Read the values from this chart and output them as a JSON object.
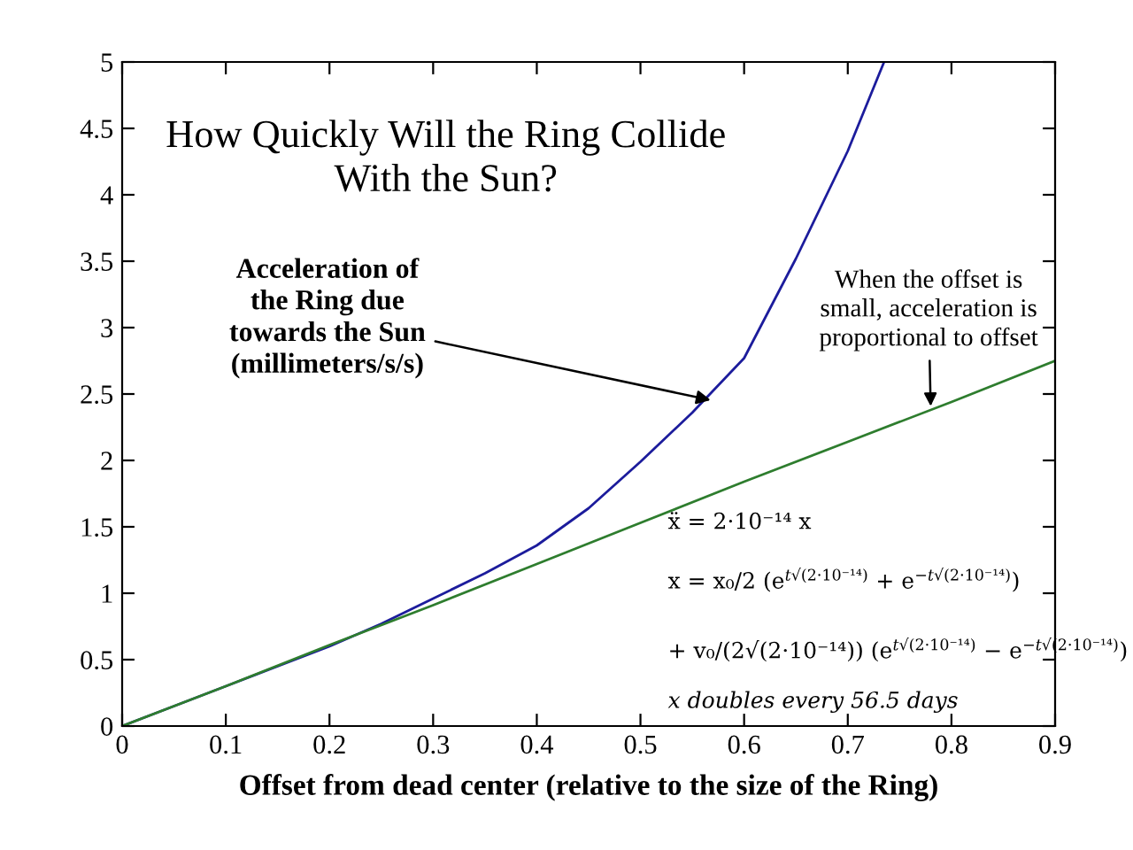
{
  "chart_data": {
    "type": "line",
    "title": "How Quickly Will the Ring Collide\nWith the Sun?",
    "xlabel": "Offset from dead center (relative to the size of the Ring)",
    "series": [
      {
        "color": "#1c1c9c",
        "x": [
          0,
          0.05,
          0.1,
          0.15,
          0.2,
          0.25,
          0.3,
          0.35,
          0.4,
          0.45,
          0.5,
          0.55,
          0.6,
          0.65,
          0.7,
          0.735
        ],
        "values": [
          0,
          0.15,
          0.3,
          0.45,
          0.6,
          0.77,
          0.96,
          1.15,
          1.36,
          1.64,
          1.99,
          2.36,
          2.77,
          3.52,
          4.33,
          5
        ]
      },
      {
        "color": "#2e7d2e",
        "x": [
          0,
          0.1,
          0.2,
          0.3,
          0.4,
          0.5,
          0.6,
          0.7,
          0.8,
          0.9
        ],
        "values": [
          0,
          0.3,
          0.61,
          0.91,
          1.22,
          1.53,
          1.84,
          2.14,
          2.44,
          2.75
        ]
      }
    ],
    "annotations": [
      {
        "text": "Acceleration of\nthe Ring due\ntowards the Sun\n(millimeters/s/s)",
        "x": 0.57,
        "y": 2.45
      },
      {
        "text": "When the offset is\nsmall, acceleration is\nproportional to offset",
        "x": 0.78,
        "y": 2.39
      },
      "ẍ = 2·10⁻¹⁴ x",
      "x = x₀/2 (e$^{t√(2·10⁻¹⁴)}$ + e$^{−t√(2·10⁻¹⁴)}$)",
      "+ v₀/(2√(2·10⁻¹⁴)) (e$^{t√(2·10⁻¹⁴)}$ − e$^{−t√(2·10⁻¹⁴)}$)",
      "x doubles every 56.5 days"
    ],
    "xlim": [
      0,
      0.9
    ],
    "ylim": [
      0,
      5
    ],
    "xticks": [
      0,
      0.1,
      0.2,
      0.3,
      0.4,
      0.5,
      0.6,
      0.7,
      0.8,
      0.9
    ],
    "yticks": [
      0,
      0.5,
      1,
      1.5,
      2,
      2.5,
      3,
      3.5,
      4,
      4.5,
      5
    ],
    "grid": false,
    "legend": false,
    "marker": "none",
    "line_style": "solid"
  }
}
